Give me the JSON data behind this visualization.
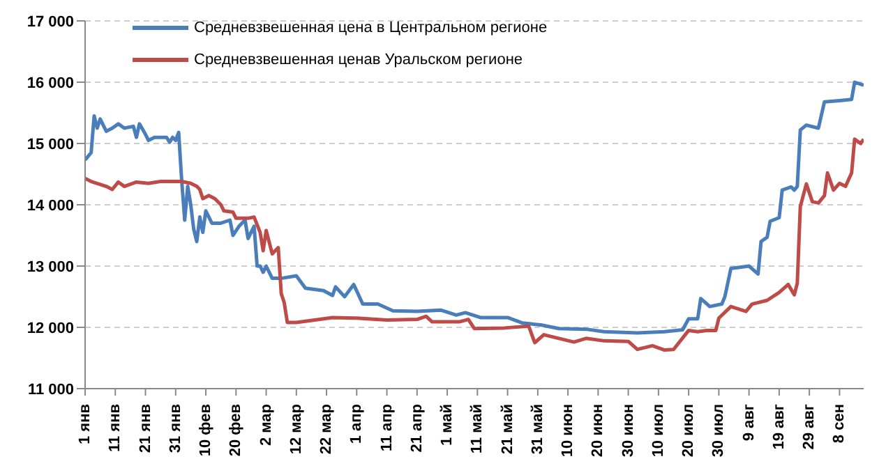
{
  "chart_data": {
    "type": "line",
    "legend": "top",
    "grid": "y",
    "line_style": "solid",
    "marker": "none",
    "xlim": [
      "--01-01",
      "--09-16"
    ],
    "xticks": [
      {
        "value": "--01-01",
        "label": "1 янв"
      },
      {
        "value": "--01-11",
        "label": "11 янв"
      },
      {
        "value": "--01-21",
        "label": "21 янв"
      },
      {
        "value": "--01-31",
        "label": "31 янв"
      },
      {
        "value": "--02-10",
        "label": "10 фев"
      },
      {
        "value": "--02-20",
        "label": "20 фев"
      },
      {
        "value": "--03-02",
        "label": "2 мар"
      },
      {
        "value": "--03-12",
        "label": "12 мар"
      },
      {
        "value": "--03-22",
        "label": "22 мар"
      },
      {
        "value": "--04-01",
        "label": "1 апр"
      },
      {
        "value": "--04-11",
        "label": "11 апр"
      },
      {
        "value": "--04-21",
        "label": "21 апр"
      },
      {
        "value": "--05-01",
        "label": "1 май"
      },
      {
        "value": "--05-11",
        "label": "11 май"
      },
      {
        "value": "--05-21",
        "label": "21 май"
      },
      {
        "value": "--05-31",
        "label": "31 май"
      },
      {
        "value": "--06-10",
        "label": "10 июн"
      },
      {
        "value": "--06-20",
        "label": "20 июн"
      },
      {
        "value": "--06-30",
        "label": "30 июн"
      },
      {
        "value": "--07-10",
        "label": "10 июл"
      },
      {
        "value": "--07-20",
        "label": "20 июл"
      },
      {
        "value": "--07-30",
        "label": "30 июл"
      },
      {
        "value": "--08-09",
        "label": "9 авг"
      },
      {
        "value": "--08-19",
        "label": "19 авг"
      },
      {
        "value": "--08-29",
        "label": "29 авг"
      },
      {
        "value": "--09-08",
        "label": "8 сен"
      }
    ],
    "ylim": [
      11000,
      17000
    ],
    "yticks": [
      {
        "value": 11000,
        "label": "11 000"
      },
      {
        "value": 12000,
        "label": "12 000"
      },
      {
        "value": 13000,
        "label": "13 000"
      },
      {
        "value": 14000,
        "label": "14 000"
      },
      {
        "value": 15000,
        "label": "15 000"
      },
      {
        "value": 16000,
        "label": "16 000"
      },
      {
        "value": 17000,
        "label": "17 000"
      }
    ],
    "series": [
      {
        "name": "Средневзвешенная цена в Центральном регионе",
        "color": "#4a7ebb",
        "x": [
          "--01-01",
          "--01-03",
          "--01-04",
          "--01-05",
          "--01-06",
          "--01-08",
          "--01-10",
          "--01-12",
          "--01-14",
          "--01-17",
          "--01-18",
          "--01-19",
          "--01-21",
          "--01-22",
          "--01-24",
          "--01-28",
          "--01-29",
          "--01-30",
          "--01-31",
          "--02-01",
          "--02-02",
          "--02-03",
          "--02-04",
          "--02-05",
          "--02-06",
          "--02-07",
          "--02-08",
          "--02-09",
          "--02-10",
          "--02-12",
          "--02-15",
          "--02-18",
          "--02-19",
          "--02-21",
          "--02-23",
          "--02-24",
          "--02-26",
          "--02-27",
          "--02-28",
          "--03-01",
          "--03-02",
          "--03-04",
          "--03-07",
          "--03-12",
          "--03-15",
          "--03-21",
          "--03-24",
          "--03-25",
          "--03-28",
          "--03-31",
          "--04-03",
          "--04-08",
          "--04-13",
          "--04-21",
          "--04-29",
          "--05-04",
          "--05-07",
          "--05-12",
          "--05-21",
          "--05-26",
          "--06-01",
          "--06-07",
          "--06-16",
          "--06-22",
          "--07-03",
          "--07-12",
          "--07-18",
          "--07-20",
          "--07-23",
          "--07-24",
          "--07-27",
          "--07-31",
          "--08-01",
          "--08-03",
          "--08-09",
          "--08-12",
          "--08-13",
          "--08-15",
          "--08-16",
          "--08-19",
          "--08-20",
          "--08-23",
          "--08-24",
          "--08-25",
          "--08-26",
          "--08-28",
          "--09-01",
          "--09-03",
          "--09-08",
          "--09-12",
          "--09-13",
          "--09-16"
        ],
        "values": [
          14730,
          14850,
          15450,
          15250,
          15400,
          15200,
          15250,
          15320,
          15250,
          15280,
          15100,
          15320,
          15150,
          15050,
          15100,
          15100,
          15020,
          15100,
          15050,
          15180,
          14400,
          13750,
          14300,
          14000,
          13600,
          13400,
          13800,
          13550,
          13900,
          13700,
          13700,
          13750,
          13500,
          13650,
          13750,
          13450,
          13650,
          13000,
          13000,
          12900,
          13000,
          12800,
          12800,
          12840,
          12640,
          12600,
          12520,
          12660,
          12500,
          12700,
          12380,
          12380,
          12270,
          12260,
          12280,
          12200,
          12240,
          12160,
          12160,
          12070,
          12040,
          11980,
          11970,
          11930,
          11910,
          11930,
          11960,
          12140,
          12140,
          12470,
          12340,
          12380,
          12500,
          12960,
          13000,
          12870,
          13400,
          13470,
          13730,
          13790,
          14240,
          14290,
          14240,
          14300,
          15220,
          15300,
          15250,
          15680,
          15700,
          15720,
          16000,
          15950
        ]
      },
      {
        "name": "Средневзвешенная ценав Уральском регионе",
        "color": "#be4b48",
        "x": [
          "--01-01",
          "--01-03",
          "--01-08",
          "--01-10",
          "--01-12",
          "--01-14",
          "--01-18",
          "--01-22",
          "--01-26",
          "--01-31",
          "--02-02",
          "--02-05",
          "--02-07",
          "--02-08",
          "--02-09",
          "--02-11",
          "--02-13",
          "--02-15",
          "--02-16",
          "--02-19",
          "--02-20",
          "--02-24",
          "--02-26",
          "--02-28",
          "--03-01",
          "--03-02",
          "--03-04",
          "--03-06",
          "--03-07",
          "--03-08",
          "--03-09",
          "--03-12",
          "--03-15",
          "--03-24",
          "--04-01",
          "--04-11",
          "--04-21",
          "--04-24",
          "--04-26",
          "--05-05",
          "--05-08",
          "--05-10",
          "--05-20",
          "--05-28",
          "--05-30",
          "--06-02",
          "--06-07",
          "--06-12",
          "--06-16",
          "--06-22",
          "--06-30",
          "--07-03",
          "--07-08",
          "--07-12",
          "--07-15",
          "--07-20",
          "--07-23",
          "--07-26",
          "--07-29",
          "--07-30",
          "--08-03",
          "--08-08",
          "--08-10",
          "--08-15",
          "--08-19",
          "--08-22",
          "--08-24",
          "--08-25",
          "--08-26",
          "--08-28",
          "--08-30",
          "--09-01",
          "--09-03",
          "--09-04",
          "--09-06",
          "--09-08",
          "--09-10",
          "--09-12",
          "--09-13",
          "--09-15",
          "--09-16"
        ],
        "values": [
          14430,
          14380,
          14300,
          14250,
          14370,
          14300,
          14370,
          14350,
          14380,
          14380,
          14380,
          14350,
          14300,
          14250,
          14100,
          14150,
          14100,
          14000,
          13900,
          13880,
          13780,
          13780,
          13800,
          13550,
          13250,
          13580,
          13200,
          13300,
          12550,
          12400,
          12080,
          12080,
          12100,
          12160,
          12150,
          12120,
          12130,
          12180,
          12090,
          12090,
          12130,
          11980,
          11990,
          12020,
          11750,
          11880,
          11820,
          11760,
          11820,
          11780,
          11770,
          11640,
          11700,
          11630,
          11640,
          11950,
          11930,
          11950,
          11950,
          12150,
          12340,
          12260,
          12380,
          12440,
          12570,
          12700,
          12530,
          12720,
          13970,
          14340,
          14050,
          14030,
          14150,
          14520,
          14240,
          14350,
          14300,
          14520,
          15070,
          15000,
          15070
        ]
      }
    ]
  }
}
